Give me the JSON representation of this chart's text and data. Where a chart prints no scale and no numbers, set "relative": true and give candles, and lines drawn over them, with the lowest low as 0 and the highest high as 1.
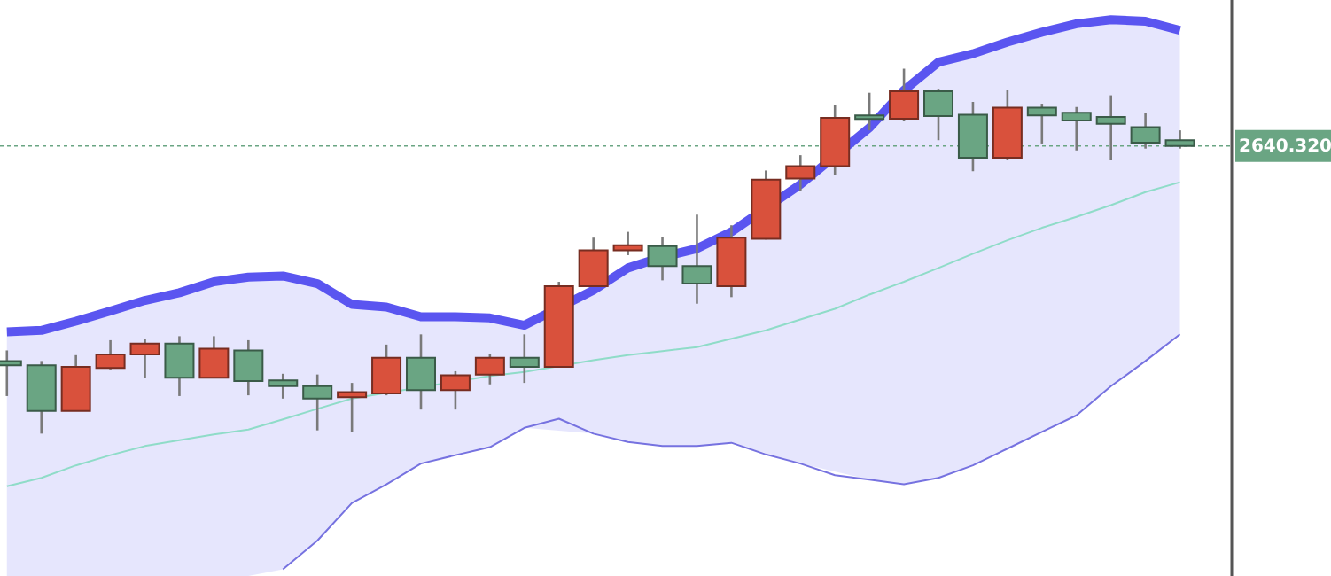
{
  "chart_data": {
    "type": "candlestick",
    "relative": true,
    "categories": [
      null,
      null,
      null,
      null,
      null,
      null,
      null,
      null,
      null,
      null,
      null,
      null,
      null,
      null,
      null,
      null,
      null,
      null,
      null,
      null,
      null,
      null,
      null,
      null,
      null,
      null,
      null,
      null,
      null,
      null,
      null,
      null,
      null,
      null,
      null
    ],
    "ohlc": [
      [
        0.199,
        0.228,
        0.103,
        0.187
      ],
      [
        0.187,
        0.199,
        0,
        0.062
      ],
      [
        0.062,
        0.215,
        0.062,
        0.183
      ],
      [
        0.18,
        0.256,
        0.176,
        0.217
      ],
      [
        0.217,
        0.26,
        0.153,
        0.247
      ],
      [
        0.247,
        0.267,
        0.103,
        0.153
      ],
      [
        0.153,
        0.267,
        0.153,
        0.233
      ],
      [
        0.228,
        0.256,
        0.105,
        0.144
      ],
      [
        0.146,
        0.164,
        0.096,
        0.13
      ],
      [
        0.13,
        0.162,
        0.009,
        0.096
      ],
      [
        0.1,
        0.139,
        0.005,
        0.114
      ],
      [
        0.11,
        0.244,
        0.105,
        0.208
      ],
      [
        0.208,
        0.272,
        0.066,
        0.119
      ],
      [
        0.119,
        0.171,
        0.066,
        0.16
      ],
      [
        0.162,
        0.217,
        0.135,
        0.208
      ],
      [
        0.208,
        0.272,
        0.139,
        0.183
      ],
      [
        0.183,
        0.416,
        0.183,
        0.404
      ],
      [
        0.404,
        0.537,
        0.404,
        0.502
      ],
      [
        0.502,
        0.553,
        0.489,
        0.516
      ],
      [
        0.514,
        0.539,
        0.42,
        0.459
      ],
      [
        0.459,
        0.6,
        0.356,
        0.411
      ],
      [
        0.404,
        0.571,
        0.374,
        0.537
      ],
      [
        0.534,
        0.721,
        0.532,
        0.696
      ],
      [
        0.699,
        0.763,
        0.664,
        0.733
      ],
      [
        0.733,
        0.9,
        0.708,
        0.865
      ],
      [
        0.872,
        0.934,
        0.831,
        0.865
      ],
      [
        0.863,
        1,
        0.858,
        0.938
      ],
      [
        0.938,
        0.945,
        0.804,
        0.87
      ],
      [
        0.874,
        0.909,
        0.719,
        0.756
      ],
      [
        0.756,
        0.943,
        0.751,
        0.893
      ],
      [
        0.893,
        0.904,
        0.795,
        0.872
      ],
      [
        0.879,
        0.895,
        0.776,
        0.858
      ],
      [
        0.868,
        0.927,
        0.751,
        0.849
      ],
      [
        0.84,
        0.879,
        0.781,
        0.797
      ],
      [
        0.804,
        0.831,
        0.781,
        0.788
      ]
    ],
    "colors": [
      "#6aa583",
      "#6aa583",
      "#d9513c",
      "#d9513c",
      "#d9513c",
      "#6aa583",
      "#d9513c",
      "#6aa583",
      "#6aa583",
      "#6aa583",
      "#d9513c",
      "#d9513c",
      "#6aa583",
      "#d9513c",
      "#d9513c",
      "#6aa583",
      "#d9513c",
      "#d9513c",
      "#d9513c",
      "#6aa583",
      "#6aa583",
      "#d9513c",
      "#d9513c",
      "#d9513c",
      "#d9513c",
      "#6aa583",
      "#d9513c",
      "#6aa583",
      "#6aa583",
      "#d9513c",
      "#6aa583",
      "#6aa583",
      "#6aa583",
      "#6aa583",
      "#6aa583"
    ],
    "series": [
      {
        "type": "area",
        "color": "#5a55f0",
        "values": [
          0.279,
          0.283,
          0.308,
          0.336,
          0.365,
          0.386,
          0.416,
          0.429,
          0.432,
          0.411,
          0.354,
          0.347,
          0.32,
          0.32,
          0.317,
          0.297,
          null,
          0.393,
          0.454,
          0.484,
          0.507,
          0.553,
          null,
          0.683,
          null,
          0.838,
          0.941,
          1.018,
          1.041,
          1.073,
          1.1,
          1.123,
          1.134,
          1.13,
          1.105
        ]
      },
      {
        "type": "line",
        "color": "#8fdcc8",
        "values": [
          -0.144,
          -0.121,
          -0.087,
          -0.059,
          -0.034,
          -0.018,
          -0.002,
          0.011,
          0.039,
          0.068,
          0.096,
          null,
          null,
          null,
          0.158,
          0.169,
          null,
          0.201,
          0.215,
          0.226,
          0.237,
          0.26,
          0.283,
          0.313,
          0.342,
          0.381,
          0.416,
          0.454,
          0.493,
          0.53,
          0.564,
          0.594,
          0.626,
          0.662,
          0.689
        ]
      },
      {
        "type": "line",
        "color": "#7672e0",
        "values": [
          null,
          null,
          null,
          null,
          null,
          null,
          null,
          null,
          -0.372,
          -0.293,
          -0.19,
          -0.139,
          -0.082,
          -0.059,
          -0.037,
          0.016,
          0.041,
          0,
          -0.023,
          -0.034,
          -0.034,
          -0.025,
          -0.057,
          -0.082,
          -0.114,
          -0.126,
          -0.139,
          -0.121,
          -0.087,
          -0.041,
          0.005,
          0.05,
          0.13,
          0.199,
          0.272
        ]
      }
    ],
    "ref_lines": [
      {
        "axis": "y",
        "value": 0.788,
        "color": "#6aa583",
        "line_style": "dotted"
      }
    ],
    "annotations": [
      "2640.320"
    ]
  }
}
